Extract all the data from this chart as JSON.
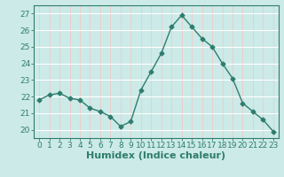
{
  "x": [
    0,
    1,
    2,
    3,
    4,
    5,
    6,
    7,
    8,
    9,
    10,
    11,
    12,
    13,
    14,
    15,
    16,
    17,
    18,
    19,
    20,
    21,
    22,
    23
  ],
  "y": [
    21.8,
    22.1,
    22.2,
    21.9,
    21.8,
    21.3,
    21.1,
    20.8,
    20.2,
    20.5,
    22.4,
    23.5,
    24.6,
    26.2,
    26.9,
    26.2,
    25.5,
    25.0,
    24.0,
    23.1,
    21.6,
    21.1,
    20.6,
    19.9
  ],
  "line_color": "#2e7d6e",
  "marker": "D",
  "markersize": 2.5,
  "bg_color": "#cceae7",
  "grid_color_major": "#f0c8c8",
  "grid_color_minor": "#ffffff",
  "xlabel": "Humidex (Indice chaleur)",
  "ylabel_ticks": [
    20,
    21,
    22,
    23,
    24,
    25,
    26,
    27
  ],
  "xtick_labels": [
    "0",
    "1",
    "2",
    "3",
    "4",
    "5",
    "6",
    "7",
    "8",
    "9",
    "10",
    "11",
    "12",
    "13",
    "14",
    "15",
    "16",
    "17",
    "18",
    "19",
    "20",
    "21",
    "22",
    "23"
  ],
  "ylim": [
    19.5,
    27.5
  ],
  "xlim": [
    -0.5,
    23.5
  ],
  "axis_color": "#2e7d6e",
  "tick_color": "#2e7d6e",
  "tick_fontsize": 6.5,
  "xlabel_fontsize": 8,
  "linewidth": 1.0
}
